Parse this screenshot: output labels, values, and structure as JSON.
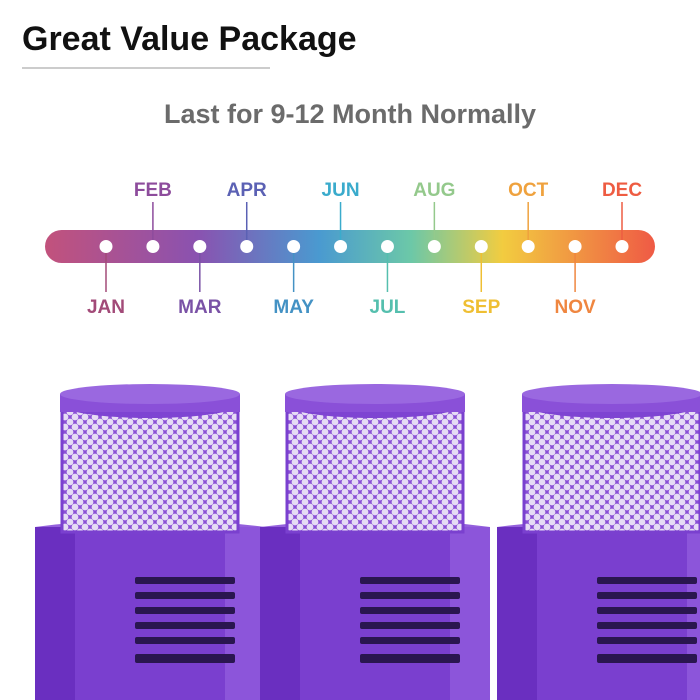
{
  "header": {
    "title": "Great Value Package"
  },
  "timeline": {
    "subtitle": "Last for 9-12 Month Normally",
    "months": [
      {
        "label": "JAN",
        "color": "#a24a78"
      },
      {
        "label": "FEB",
        "color": "#8d4c9c"
      },
      {
        "label": "MAR",
        "color": "#7a52a6"
      },
      {
        "label": "APR",
        "color": "#5b61b4"
      },
      {
        "label": "MAY",
        "color": "#4492c4"
      },
      {
        "label": "JUN",
        "color": "#3aabcc"
      },
      {
        "label": "JUL",
        "color": "#55bfae"
      },
      {
        "label": "AUG",
        "color": "#94c98c"
      },
      {
        "label": "SEP",
        "color": "#efbf33"
      },
      {
        "label": "OCT",
        "color": "#efa23e"
      },
      {
        "label": "NOV",
        "color": "#ef8640"
      },
      {
        "label": "DEC",
        "color": "#ee5c42"
      }
    ]
  }
}
